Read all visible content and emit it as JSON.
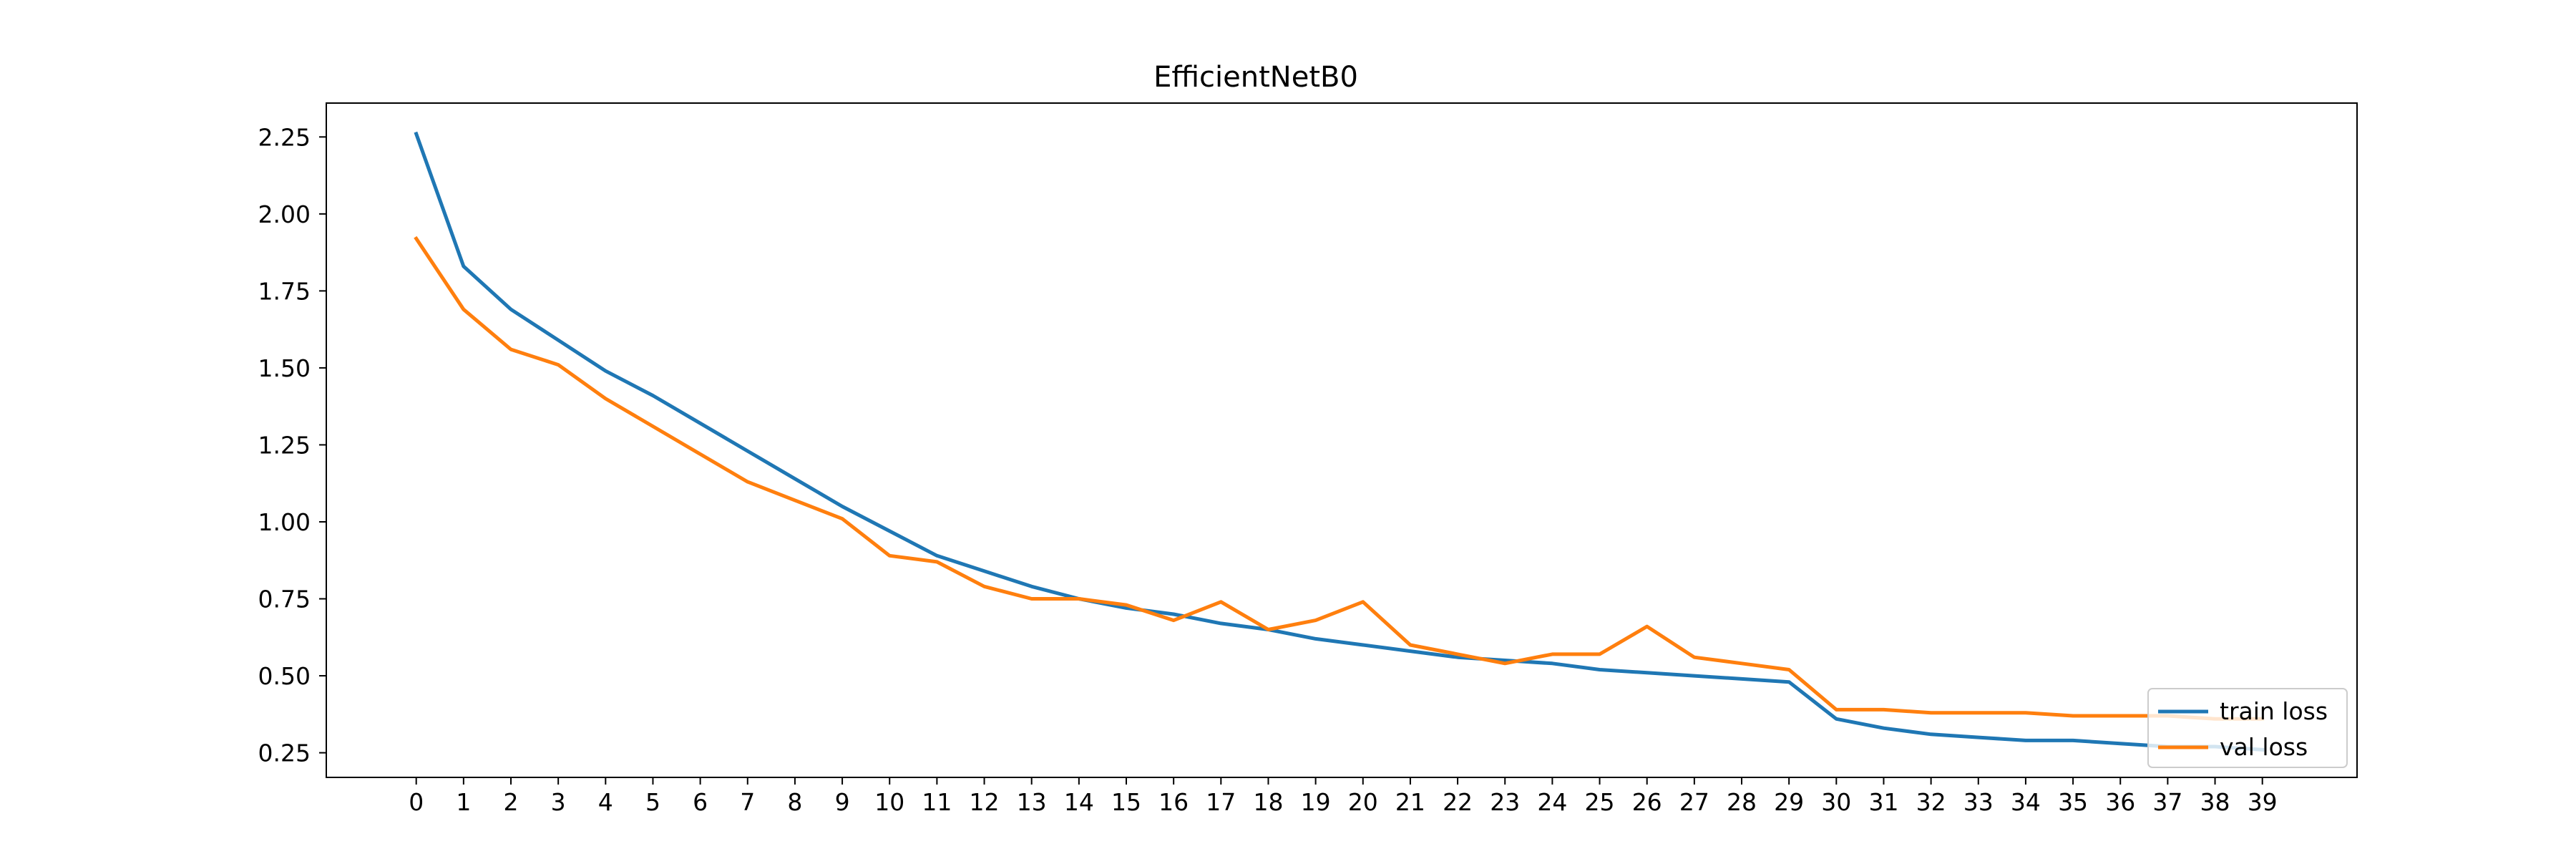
{
  "chart_data": {
    "type": "line",
    "title": "EfficientNetB0",
    "xlabel": "",
    "ylabel": "",
    "x": [
      0,
      1,
      2,
      3,
      4,
      5,
      6,
      7,
      8,
      9,
      10,
      11,
      12,
      13,
      14,
      15,
      16,
      17,
      18,
      19,
      20,
      21,
      22,
      23,
      24,
      25,
      26,
      27,
      28,
      29,
      30,
      31,
      32,
      33,
      34,
      35,
      36,
      37,
      38,
      39
    ],
    "x_ticks": [
      "0",
      "1",
      "2",
      "3",
      "4",
      "5",
      "6",
      "7",
      "8",
      "9",
      "10",
      "11",
      "12",
      "13",
      "14",
      "15",
      "16",
      "17",
      "18",
      "19",
      "20",
      "21",
      "22",
      "23",
      "24",
      "25",
      "26",
      "27",
      "28",
      "29",
      "30",
      "31",
      "32",
      "33",
      "34",
      "35",
      "36",
      "37",
      "38",
      "39"
    ],
    "y_ticks": [
      "0.25",
      "0.50",
      "0.75",
      "1.00",
      "1.25",
      "1.50",
      "1.75",
      "2.00",
      "2.25"
    ],
    "xlim": [
      -1.9,
      41.0
    ],
    "ylim": [
      0.17,
      2.36
    ],
    "grid": false,
    "legend_position": "lower-right",
    "series": [
      {
        "name": "train loss",
        "color": "#1f77b4",
        "values": [
          2.26,
          1.83,
          1.69,
          1.59,
          1.49,
          1.41,
          1.32,
          1.23,
          1.14,
          1.05,
          0.97,
          0.89,
          0.84,
          0.79,
          0.75,
          0.72,
          0.7,
          0.67,
          0.65,
          0.62,
          0.6,
          0.58,
          0.56,
          0.55,
          0.54,
          0.52,
          0.51,
          0.5,
          0.49,
          0.48,
          0.36,
          0.33,
          0.31,
          0.3,
          0.29,
          0.29,
          0.28,
          0.27,
          0.27,
          0.26
        ]
      },
      {
        "name": "val loss",
        "color": "#ff7f0e",
        "values": [
          1.92,
          1.69,
          1.56,
          1.51,
          1.4,
          1.31,
          1.22,
          1.13,
          1.07,
          1.01,
          0.89,
          0.87,
          0.79,
          0.75,
          0.75,
          0.73,
          0.68,
          0.74,
          0.65,
          0.68,
          0.74,
          0.6,
          0.57,
          0.54,
          0.57,
          0.57,
          0.66,
          0.56,
          0.54,
          0.52,
          0.39,
          0.39,
          0.38,
          0.38,
          0.38,
          0.37,
          0.37,
          0.37,
          0.36,
          0.36
        ]
      }
    ]
  }
}
